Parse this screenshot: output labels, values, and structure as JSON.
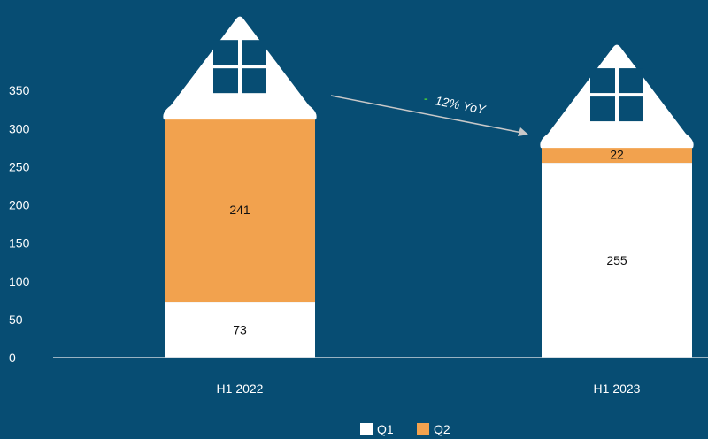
{
  "chart_data": {
    "type": "bar",
    "stacked": true,
    "categories": [
      "H1 2022",
      "H1 2023"
    ],
    "series": [
      {
        "name": "Q1",
        "values": [
          73,
          255
        ],
        "color": "#ffffff",
        "label_color": "#111111"
      },
      {
        "name": "Q2",
        "values": [
          241,
          22
        ],
        "color": "#f2a24e",
        "label_color": "#111111"
      }
    ],
    "y_ticks": [
      "0",
      "50",
      "100",
      "150",
      "200",
      "250",
      "300",
      "350"
    ],
    "ylim": [
      0,
      400
    ],
    "grid": false,
    "legend_position": "bottom-center",
    "decoration": "house-shaped bars with roof and window icons",
    "annotation": {
      "dash": "-",
      "text": "12% YoY",
      "dash_color": "#3fbf3f",
      "arrow_color": "#c8c8c8"
    },
    "colors": {
      "background": "#074d73",
      "axis": "#c8d4dc",
      "window": "#074d73"
    }
  }
}
